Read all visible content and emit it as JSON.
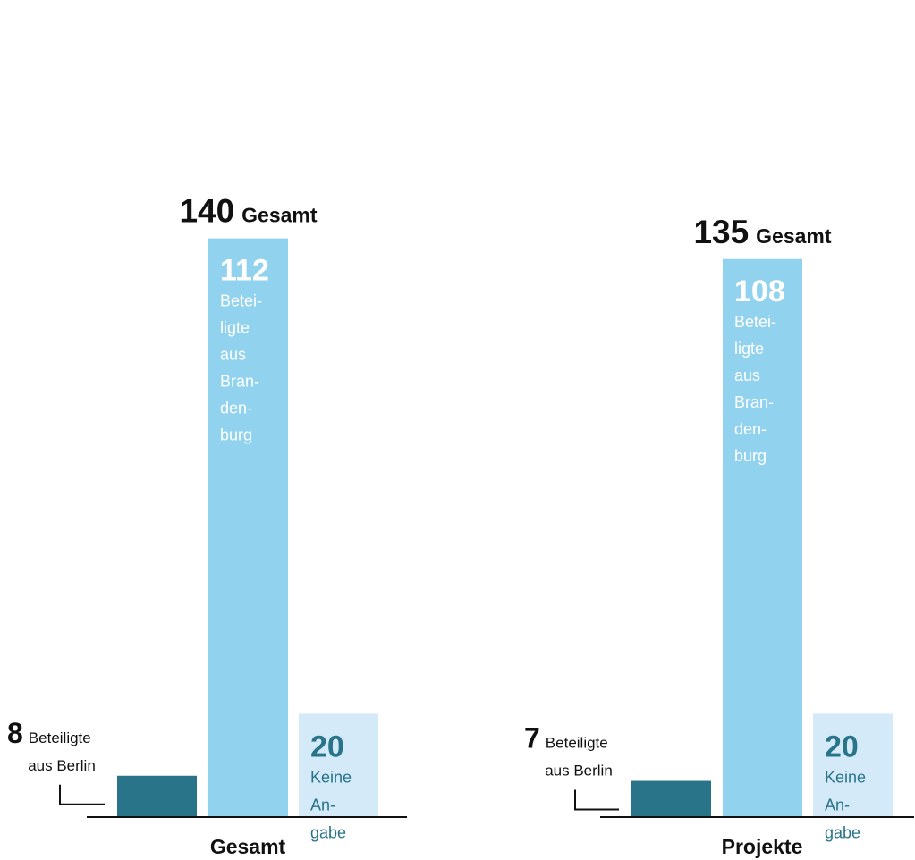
{
  "chart_data": [
    {
      "type": "bar",
      "title": "Gesamt",
      "total_value": 140,
      "total_label": "Gesamt",
      "categories": [
        "Beteiligte aus Berlin",
        "Beteiligte aus Brandenburg",
        "Keine Angabe"
      ],
      "values": [
        8,
        112,
        20
      ],
      "bar_labels": [
        {
          "value": "8",
          "lines": [
            "Beteiligte",
            "aus Berlin"
          ]
        },
        {
          "value": "112",
          "lines": [
            "Betei-",
            "ligte",
            "aus",
            "Bran-",
            "den-",
            "burg"
          ]
        },
        {
          "value": "20",
          "lines": [
            "Keine",
            "An-",
            "gabe"
          ]
        }
      ],
      "colors": [
        "#2a7489",
        "#91d2ee",
        "#d4eaf8"
      ],
      "ylim": [
        0,
        140
      ],
      "grid": false
    },
    {
      "type": "bar",
      "title": "Projekte",
      "total_value": 135,
      "total_label": "Gesamt",
      "categories": [
        "Beteiligte aus Berlin",
        "Beteiligte aus Brandenburg",
        "Keine Angabe"
      ],
      "values": [
        7,
        108,
        20
      ],
      "bar_labels": [
        {
          "value": "7",
          "lines": [
            "Beteiligte",
            "aus Berlin"
          ]
        },
        {
          "value": "108",
          "lines": [
            "Betei-",
            "ligte",
            "aus",
            "Bran-",
            "den-",
            "burg"
          ]
        },
        {
          "value": "20",
          "lines": [
            "Keine",
            "An-",
            "gabe"
          ]
        }
      ],
      "colors": [
        "#2a7489",
        "#91d2ee",
        "#d4eaf8"
      ],
      "ylim": [
        0,
        140
      ],
      "grid": false
    }
  ]
}
